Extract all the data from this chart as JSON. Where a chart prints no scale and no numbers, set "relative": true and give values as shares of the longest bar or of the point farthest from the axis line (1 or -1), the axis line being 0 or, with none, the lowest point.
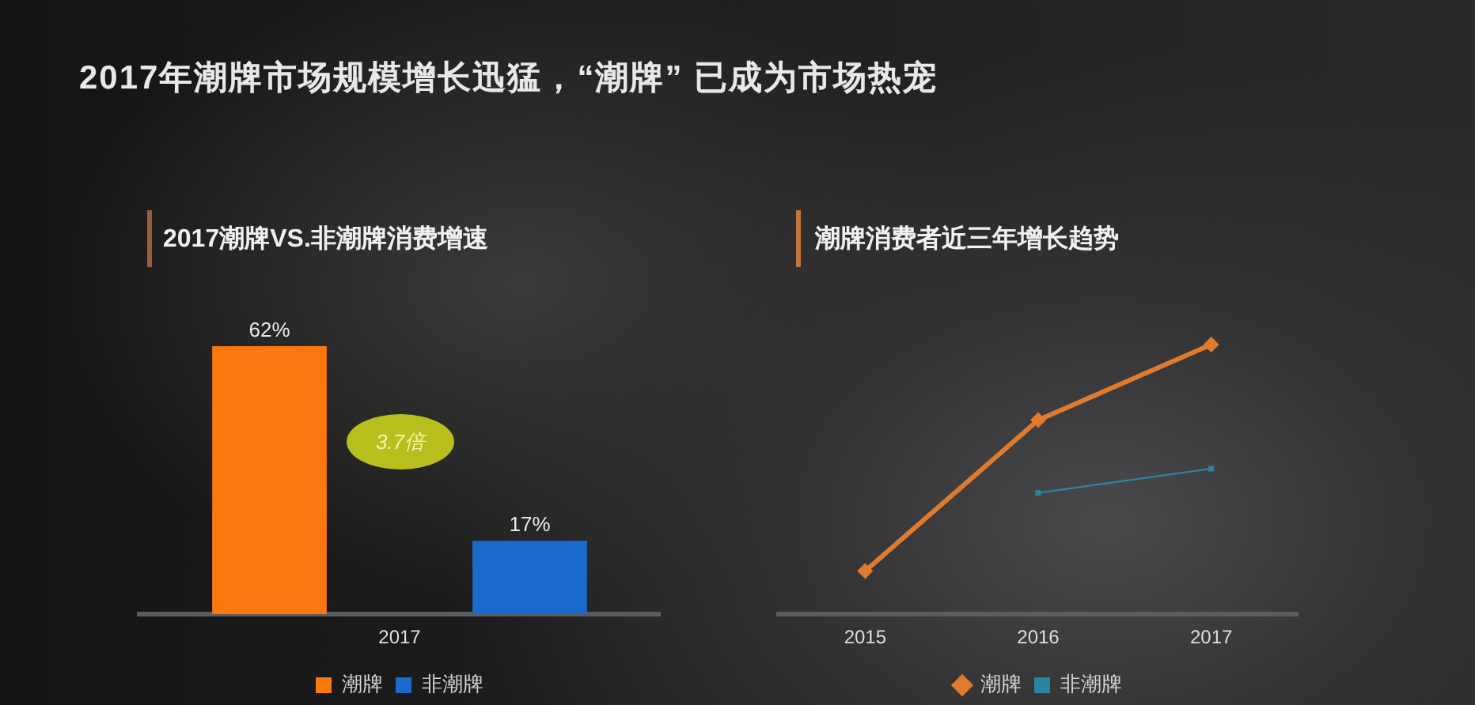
{
  "chart_data": [
    {
      "type": "bar",
      "title": "2017年潮牌市场规模增长迅猛，“潮牌” 已成为市场热宠",
      "subtitle": "2017潮牌VS.非潮牌消费增速",
      "xlabel": "2017",
      "categories": [
        null,
        null
      ],
      "stacked": true,
      "series": [
        {
          "name": "潮牌",
          "color": "#fb780f",
          "values": [
            62,
            null
          ],
          "value_labels": [
            "62%",
            null
          ]
        },
        {
          "name": "非潮牌",
          "color": "#1a6acb",
          "values": [
            null,
            17
          ],
          "value_labels": [
            null,
            "17%"
          ]
        }
      ],
      "annotations": [
        "3.7倍"
      ],
      "tick_labels": false,
      "legend": "bottom"
    },
    {
      "type": "line",
      "title": "潮牌消费者近三年增长趋势",
      "categories": [
        "2015",
        "2016",
        "2017"
      ],
      "relative": true,
      "series": [
        {
          "name": "潮牌",
          "color": "#e07b2e",
          "marker": "diamond",
          "values": [
            0.16,
            0.72,
            1
          ]
        },
        {
          "name": "非潮牌",
          "color": "#2a86a0",
          "marker": "square",
          "values": [
            null,
            0.45,
            0.54
          ]
        }
      ],
      "legend": "bottom"
    }
  ]
}
